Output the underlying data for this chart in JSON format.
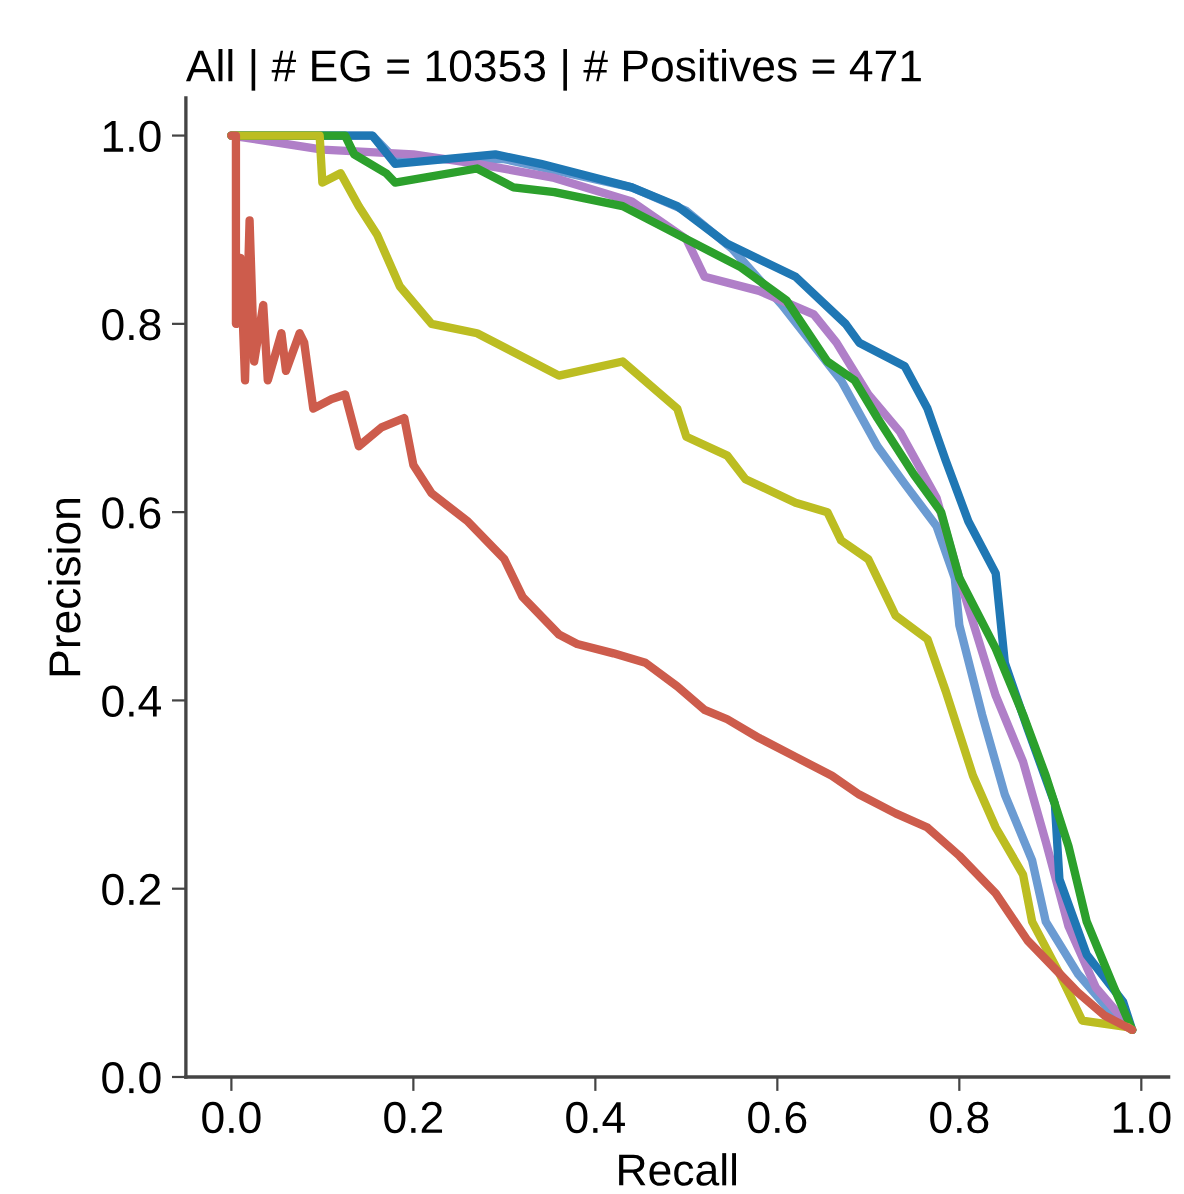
{
  "chart_data": {
    "type": "line",
    "title": "All | # EG = 10353 | # Positives = 471",
    "xlabel": "Recall",
    "ylabel": "Precision",
    "xlim": [
      -0.05,
      1.03
    ],
    "ylim": [
      0,
      1.04
    ],
    "xticks": [
      {
        "value": 0,
        "label": "0.0"
      },
      0.2,
      0.4,
      0.6,
      0.8,
      {
        "value": 1,
        "label": "1.0"
      }
    ],
    "yticks": [
      {
        "value": 0,
        "label": "0.0"
      },
      0.2,
      0.4,
      0.6,
      0.8,
      {
        "value": 1,
        "label": "1.0"
      }
    ],
    "grid": false,
    "marker": "none",
    "line_style": "solid",
    "series": [
      {
        "color": "#6b9bd2",
        "x": [
          0,
          0.155,
          0.18,
          0.3,
          0.44,
          0.5,
          0.55,
          0.605,
          0.67,
          0.71,
          0.74,
          0.775,
          0.795,
          0.8,
          0.825,
          0.85,
          0.88,
          0.895,
          0.93,
          0.97,
          0.99
        ],
        "values": [
          1.0,
          1.0,
          0.975,
          0.975,
          0.945,
          0.92,
          0.88,
          0.82,
          0.74,
          0.67,
          0.63,
          0.585,
          0.53,
          0.48,
          0.385,
          0.3,
          0.23,
          0.165,
          0.11,
          0.065,
          0.05
        ]
      },
      {
        "color": "#b07fc8",
        "x": [
          0,
          0.1,
          0.2,
          0.27,
          0.355,
          0.44,
          0.5,
          0.52,
          0.58,
          0.64,
          0.665,
          0.7,
          0.735,
          0.775,
          0.8,
          0.84,
          0.87,
          0.895,
          0.92,
          0.95,
          0.99
        ],
        "values": [
          1.0,
          0.985,
          0.98,
          0.97,
          0.955,
          0.93,
          0.89,
          0.85,
          0.835,
          0.81,
          0.78,
          0.725,
          0.685,
          0.615,
          0.53,
          0.405,
          0.335,
          0.25,
          0.16,
          0.095,
          0.05
        ]
      },
      {
        "color": "#1f77b4",
        "x": [
          0,
          0.155,
          0.18,
          0.29,
          0.34,
          0.44,
          0.49,
          0.545,
          0.62,
          0.675,
          0.69,
          0.74,
          0.765,
          0.785,
          0.81,
          0.84,
          0.85,
          0.875,
          0.905,
          0.91,
          0.94,
          0.98,
          0.99
        ],
        "values": [
          1.0,
          1.0,
          0.97,
          0.98,
          0.97,
          0.945,
          0.925,
          0.885,
          0.85,
          0.8,
          0.78,
          0.755,
          0.71,
          0.655,
          0.59,
          0.535,
          0.44,
          0.37,
          0.29,
          0.21,
          0.13,
          0.08,
          0.05
        ]
      },
      {
        "color": "#2ca02c",
        "x": [
          0,
          0.125,
          0.135,
          0.17,
          0.18,
          0.27,
          0.31,
          0.355,
          0.43,
          0.49,
          0.56,
          0.61,
          0.655,
          0.685,
          0.71,
          0.75,
          0.78,
          0.8,
          0.84,
          0.87,
          0.895,
          0.92,
          0.94,
          0.97,
          0.99
        ],
        "values": [
          1.0,
          1.0,
          0.98,
          0.96,
          0.95,
          0.965,
          0.945,
          0.94,
          0.925,
          0.895,
          0.86,
          0.825,
          0.76,
          0.74,
          0.7,
          0.64,
          0.6,
          0.53,
          0.455,
          0.385,
          0.32,
          0.245,
          0.165,
          0.095,
          0.05
        ]
      },
      {
        "color": "#bcbd22",
        "x": [
          0,
          0.097,
          0.1,
          0.12,
          0.14,
          0.16,
          0.185,
          0.22,
          0.27,
          0.36,
          0.43,
          0.49,
          0.5,
          0.545,
          0.565,
          0.62,
          0.655,
          0.67,
          0.7,
          0.72,
          0.73,
          0.765,
          0.785,
          0.815,
          0.84,
          0.87,
          0.88,
          0.91,
          0.935,
          0.985,
          0.99
        ],
        "values": [
          1.0,
          1.0,
          0.95,
          0.96,
          0.925,
          0.895,
          0.84,
          0.8,
          0.79,
          0.745,
          0.76,
          0.71,
          0.68,
          0.66,
          0.635,
          0.61,
          0.6,
          0.57,
          0.55,
          0.51,
          0.49,
          0.465,
          0.41,
          0.32,
          0.265,
          0.215,
          0.165,
          0.11,
          0.06,
          0.053,
          0.05
        ]
      },
      {
        "color": "#cd5c4c",
        "x": [
          0,
          0.005,
          0.005,
          0.01,
          0.015,
          0.02,
          0.025,
          0.035,
          0.04,
          0.055,
          0.06,
          0.075,
          0.08,
          0.09,
          0.11,
          0.125,
          0.14,
          0.165,
          0.19,
          0.2,
          0.22,
          0.26,
          0.3,
          0.32,
          0.36,
          0.38,
          0.42,
          0.455,
          0.49,
          0.52,
          0.545,
          0.58,
          0.62,
          0.66,
          0.69,
          0.73,
          0.765,
          0.8,
          0.84,
          0.875,
          0.9,
          0.93,
          0.96,
          0.99
        ],
        "values": [
          1.0,
          1.0,
          0.8,
          0.87,
          0.74,
          0.91,
          0.76,
          0.82,
          0.74,
          0.79,
          0.75,
          0.79,
          0.78,
          0.71,
          0.72,
          0.725,
          0.67,
          0.69,
          0.7,
          0.65,
          0.62,
          0.59,
          0.55,
          0.51,
          0.47,
          0.46,
          0.45,
          0.44,
          0.415,
          0.39,
          0.38,
          0.36,
          0.34,
          0.32,
          0.3,
          0.28,
          0.265,
          0.235,
          0.195,
          0.145,
          0.12,
          0.09,
          0.065,
          0.05
        ]
      }
    ]
  }
}
